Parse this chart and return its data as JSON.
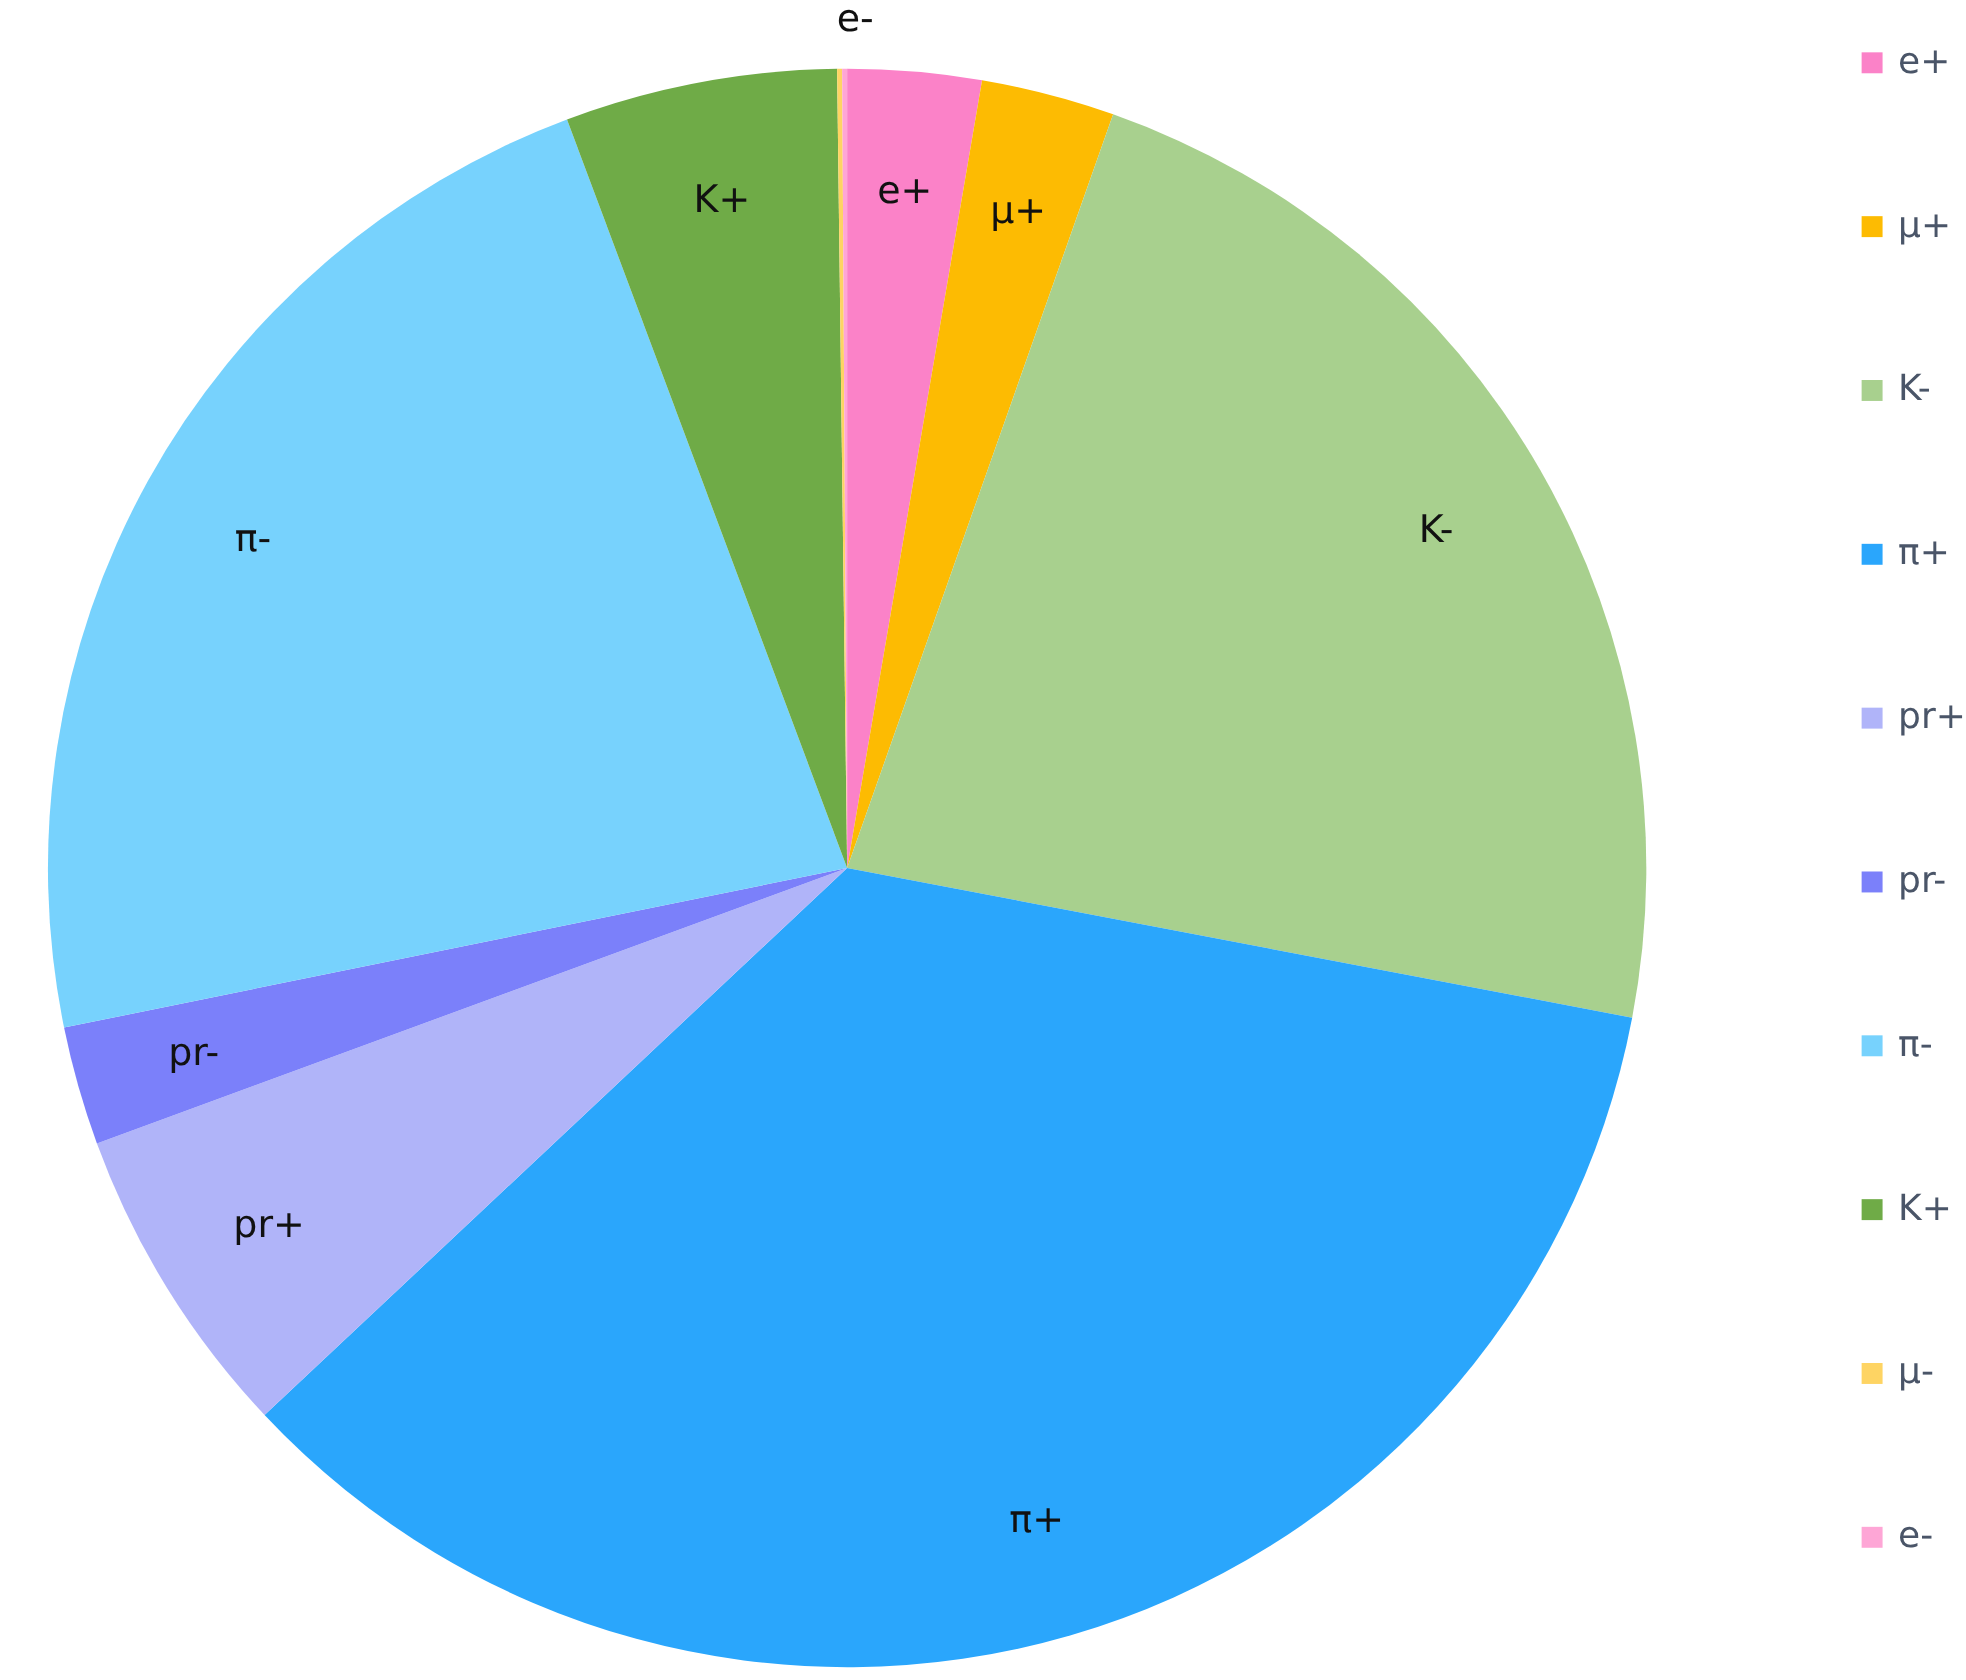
{
  "chart_data": {
    "type": "pie",
    "categories": [
      "e+",
      "μ+",
      "K-",
      "π+",
      "pr+",
      "pr-",
      "π-",
      "K+",
      "μ-",
      "e-"
    ],
    "values": [
      2.7,
      2.7,
      22.6,
      35.0,
      6.4,
      2.4,
      22.5,
      5.5,
      0.1,
      0.1
    ],
    "colors": [
      "#fb82c8",
      "#fdbb02",
      "#a8d08e",
      "#2aa6fc",
      "#b0b4f9",
      "#7b80fa",
      "#77d2fd",
      "#6fab47",
      "#fed463",
      "#fea6d6"
    ],
    "legend": "right"
  }
}
